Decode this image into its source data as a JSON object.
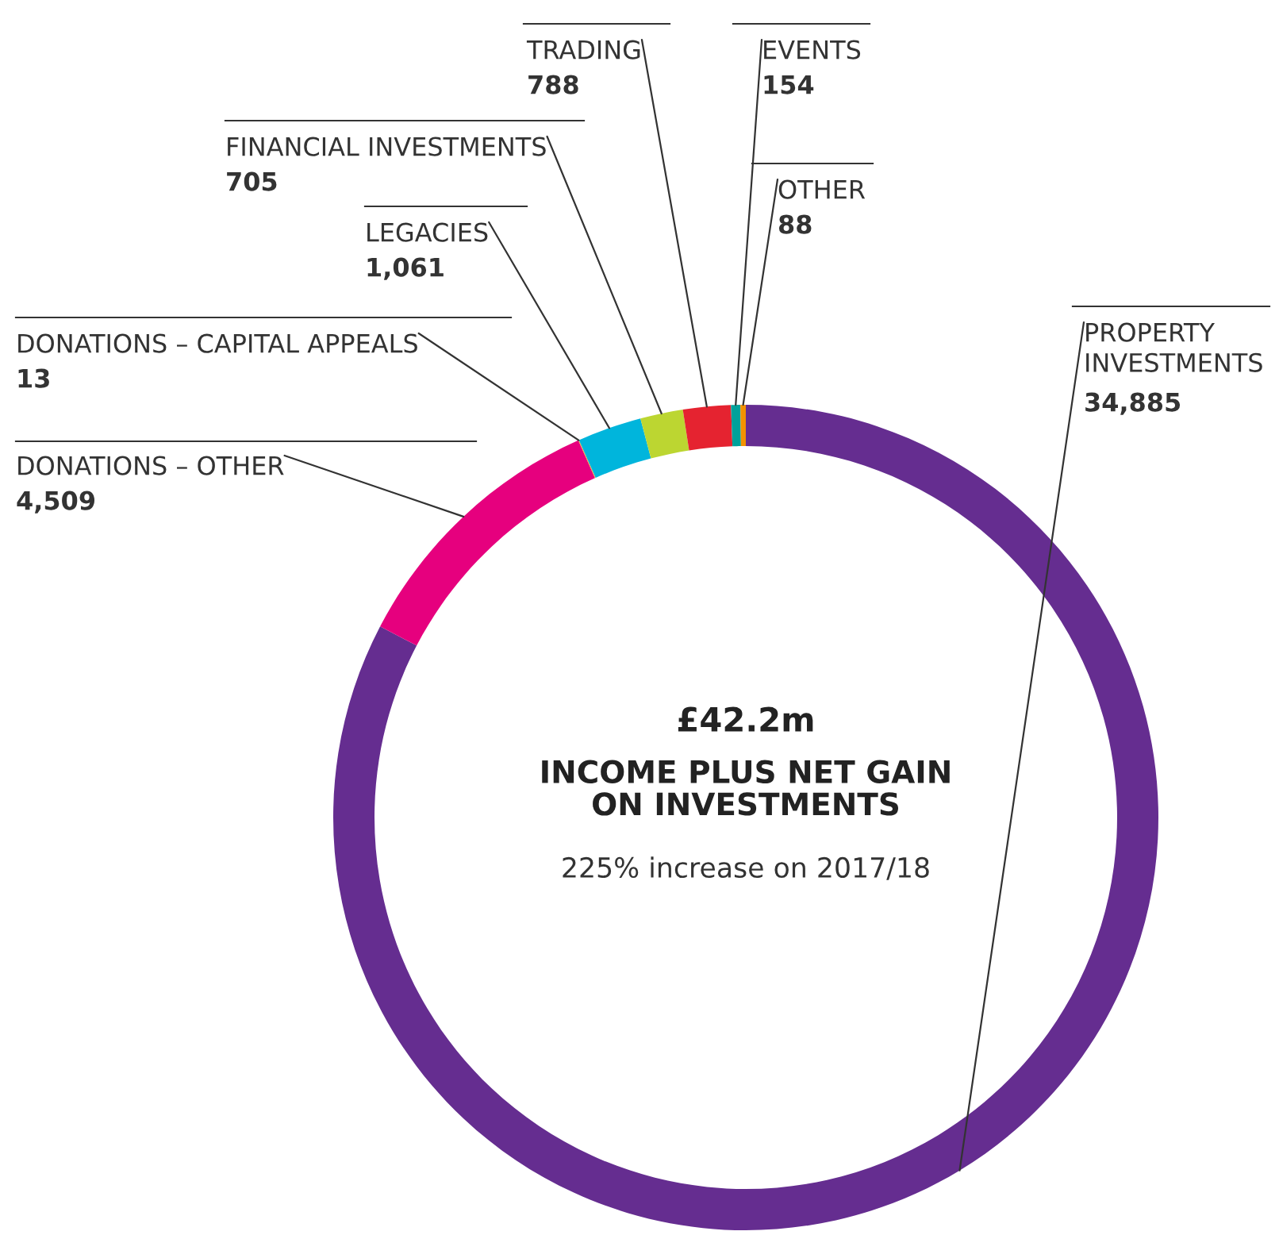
{
  "chart_data": {
    "type": "donut",
    "title": "£42.2m",
    "subtitle": "INCOME PLUS NET GAIN\nON INVESTMENTS",
    "annotations": [
      "225% increase on 2017/18"
    ],
    "categories": [
      "PROPERTY\nINVESTMENTS",
      "DONATIONS – OTHER",
      "DONATIONS – CAPITAL APPEALS",
      "LEGACIES",
      "FINANCIAL INVESTMENTS",
      "TRADING",
      "EVENTS",
      "OTHER"
    ],
    "values": [
      34885,
      4509,
      13,
      1061,
      705,
      788,
      154,
      88
    ],
    "value_labels": [
      "34,885",
      "4,509",
      "13",
      "1,061",
      "705",
      "788",
      "154",
      "88"
    ],
    "colors": [
      "#652d90",
      "#e6007e",
      "#f7a823",
      "#00b5dc",
      "#bcd631",
      "#e52330",
      "#00a19a",
      "#f39200"
    ]
  }
}
